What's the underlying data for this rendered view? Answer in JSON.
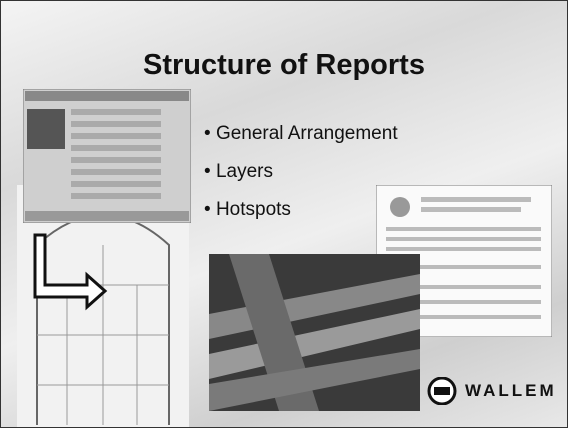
{
  "slide": {
    "title": "Structure of Reports",
    "bullets": [
      "General Arrangement",
      "Layers",
      "Hotspots"
    ],
    "logo": "WALLEM"
  }
}
